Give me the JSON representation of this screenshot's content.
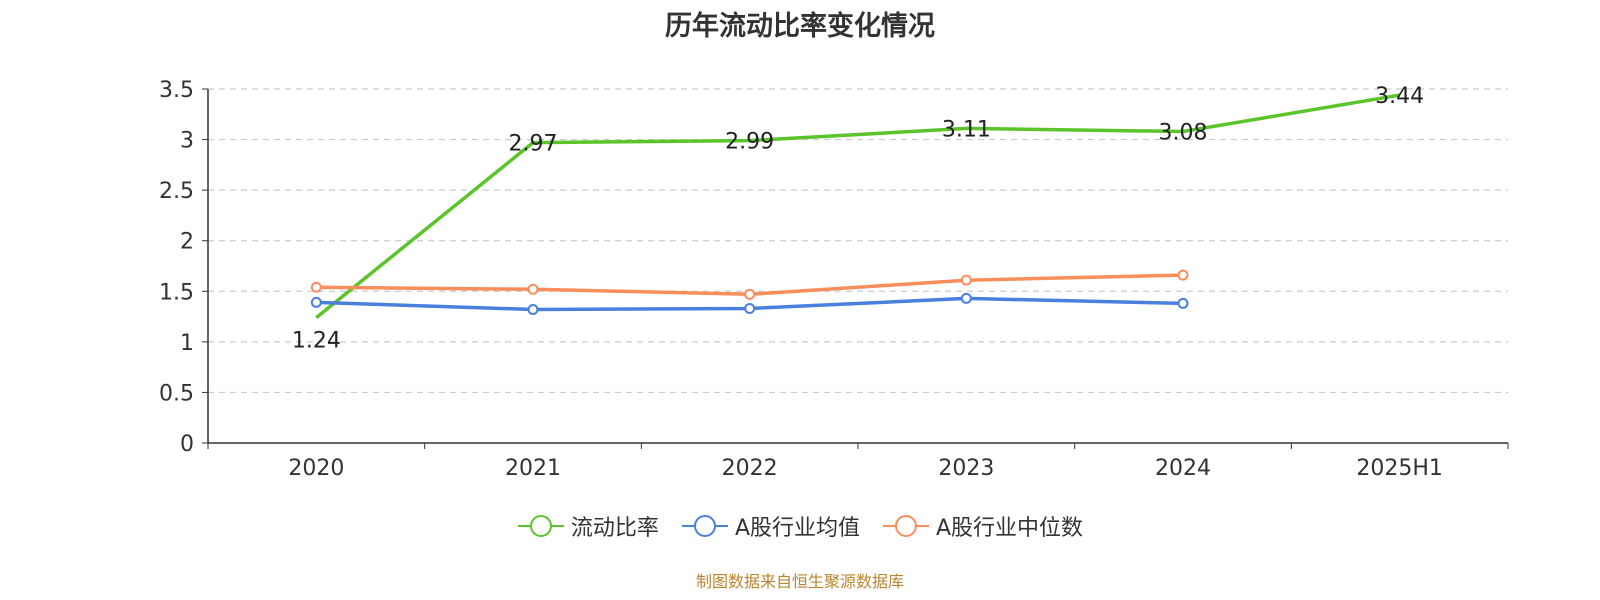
{
  "chart_data": {
    "type": "line",
    "title": "历年流动比率变化情况",
    "categories": [
      "2020",
      "2021",
      "2022",
      "2023",
      "2024",
      "2025H1"
    ],
    "yticks": [
      "0",
      "0.5",
      "1",
      "1.5",
      "2",
      "2.5",
      "3",
      "3.5"
    ],
    "ylim": [
      0,
      3.5
    ],
    "grid": true,
    "legend_position": "bottom",
    "series": [
      {
        "name": "流动比率",
        "color": "#5cc42b",
        "values": [
          1.24,
          2.97,
          2.99,
          3.11,
          3.08,
          3.44
        ],
        "labels": [
          "1.24",
          "2.97",
          "2.99",
          "3.11",
          "3.08",
          "3.44"
        ],
        "markers": false
      },
      {
        "name": "A股行业均值",
        "color": "#4a7fdc",
        "values": [
          1.39,
          1.32,
          1.33,
          1.43,
          1.38,
          null
        ],
        "markers": true
      },
      {
        "name": "A股行业中位数",
        "color": "#f88e5b",
        "values": [
          1.54,
          1.52,
          1.47,
          1.61,
          1.66,
          null
        ],
        "markers": true
      }
    ]
  },
  "footer": {
    "source": "制图数据来自恒生聚源数据库"
  }
}
